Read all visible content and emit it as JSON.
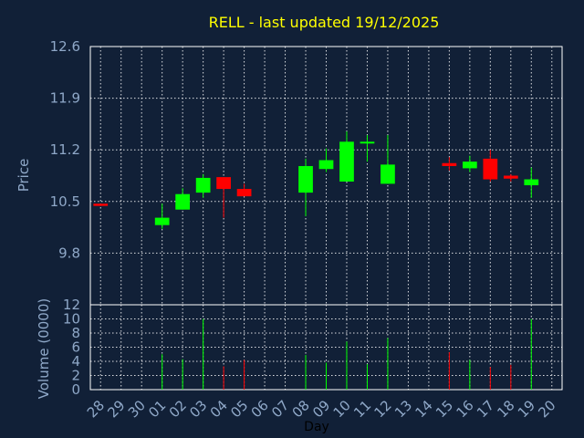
{
  "chart_data": {
    "type": "candlestick",
    "title": "RELL - last updated 19/12/2025",
    "ylabel_price": "Price",
    "ylabel_volume": "Volume (0000)",
    "xlabel": "Day",
    "price_ylim": [
      9.1,
      12.6
    ],
    "price_ticks": [
      "12.6",
      "11.9",
      "11.2",
      "10.5",
      "9.8"
    ],
    "price_tick_values": [
      12.6,
      11.9,
      11.2,
      10.5,
      9.8
    ],
    "volume_ylim": [
      0,
      12
    ],
    "volume_ticks": [
      "12",
      "10",
      "8",
      "6",
      "4",
      "2",
      "0"
    ],
    "volume_tick_values": [
      12,
      10,
      8,
      6,
      4,
      2,
      0
    ],
    "up_color": "#00ff00",
    "down_color": "#ff0000",
    "categories": [
      "28",
      "29",
      "30",
      "01",
      "02",
      "03",
      "04",
      "05",
      "06",
      "07",
      "08",
      "09",
      "10",
      "11",
      "12",
      "13",
      "14",
      "15",
      "16",
      "17",
      "18",
      "19",
      "20"
    ],
    "candles": [
      {
        "day": "28",
        "open": 10.47,
        "high": 10.47,
        "low": 10.44,
        "close": 10.44,
        "volume": 0
      },
      {
        "day": "01",
        "open": 10.18,
        "high": 10.47,
        "low": 10.13,
        "close": 10.28,
        "volume": 5
      },
      {
        "day": "02",
        "open": 10.39,
        "high": 10.68,
        "low": 10.39,
        "close": 10.6,
        "volume": 4.3
      },
      {
        "day": "03",
        "open": 10.62,
        "high": 10.87,
        "low": 10.55,
        "close": 10.82,
        "volume": 10
      },
      {
        "day": "04",
        "open": 10.83,
        "high": 10.83,
        "low": 10.28,
        "close": 10.67,
        "volume": 3.3
      },
      {
        "day": "05",
        "open": 10.67,
        "high": 10.74,
        "low": 10.57,
        "close": 10.57,
        "volume": 4.2
      },
      {
        "day": "08",
        "open": 10.62,
        "high": 11.08,
        "low": 10.3,
        "close": 10.98,
        "volume": 4.9
      },
      {
        "day": "09",
        "open": 10.94,
        "high": 11.22,
        "low": 10.9,
        "close": 11.06,
        "volume": 3.8
      },
      {
        "day": "10",
        "open": 10.77,
        "high": 11.45,
        "low": 10.77,
        "close": 11.31,
        "volume": 6.8
      },
      {
        "day": "11",
        "open": 11.29,
        "high": 11.4,
        "low": 11.04,
        "close": 11.31,
        "volume": 3.6
      },
      {
        "day": "12",
        "open": 10.74,
        "high": 11.4,
        "low": 10.74,
        "close": 11.0,
        "volume": 7.3
      },
      {
        "day": "15",
        "open": 11.02,
        "high": 11.1,
        "low": 10.92,
        "close": 10.98,
        "volume": 5.3
      },
      {
        "day": "16",
        "open": 10.95,
        "high": 11.12,
        "low": 10.9,
        "close": 11.04,
        "volume": 4.2
      },
      {
        "day": "17",
        "open": 11.08,
        "high": 11.2,
        "low": 10.77,
        "close": 10.8,
        "volume": 3.2
      },
      {
        "day": "18",
        "open": 10.85,
        "high": 10.87,
        "low": 10.77,
        "close": 10.81,
        "volume": 3.5
      },
      {
        "day": "19",
        "open": 10.72,
        "high": 10.96,
        "low": 10.55,
        "close": 10.8,
        "volume": 10
      }
    ]
  }
}
